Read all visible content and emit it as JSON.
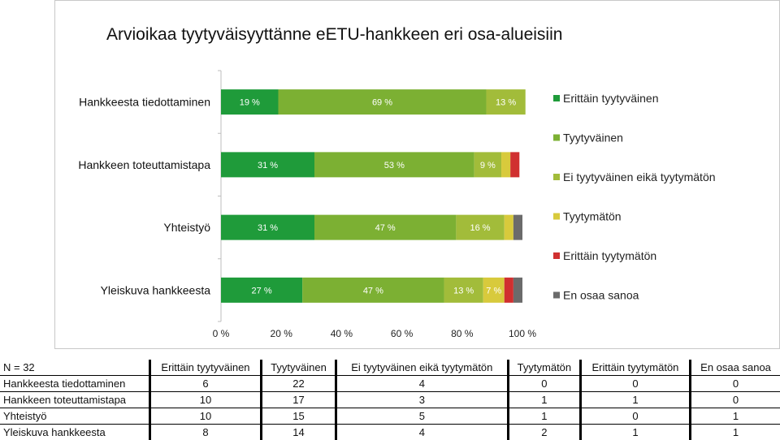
{
  "chart_data": {
    "type": "bar",
    "orientation": "horizontal",
    "stacked": true,
    "percent": true,
    "title": "Arvioikaa tyytyväisyyttänne eETU-hankkeen eri osa-alueisiin",
    "categories": [
      "Hankkeesta tiedottaminen",
      "Hankkeen toteuttamistapa",
      "Yhteistyö",
      "Yleiskuva hankkeesta"
    ],
    "series": [
      {
        "name": "Erittäin tyytyväinen",
        "color": "#1f9b3a",
        "values": [
          19,
          31,
          31,
          27
        ],
        "labels": [
          "19 %",
          "31 %",
          "31 %",
          "27 %"
        ]
      },
      {
        "name": "Tyytyväinen",
        "color": "#7cb033",
        "values": [
          69,
          53,
          47,
          47
        ],
        "labels": [
          "69 %",
          "53 %",
          "47 %",
          "47 %"
        ]
      },
      {
        "name": "Ei tyytyväinen eikä tyytymätön",
        "color": "#a2bc3a",
        "values": [
          13,
          9,
          16,
          13
        ],
        "labels": [
          "13 %",
          "9 %",
          "16 %",
          "13 %"
        ]
      },
      {
        "name": "Tyytymätön",
        "color": "#d8ca3c",
        "values": [
          0,
          3,
          3,
          7
        ],
        "labels": [
          "",
          "",
          "",
          "7 %"
        ]
      },
      {
        "name": "Erittäin tyytymätön",
        "color": "#d03030",
        "values": [
          0,
          3,
          0,
          3
        ],
        "labels": [
          "",
          "",
          "",
          ""
        ]
      },
      {
        "name": "En osaa sanoa",
        "color": "#6b6b6b",
        "values": [
          0,
          0,
          3,
          3
        ],
        "labels": [
          "",
          "",
          "",
          ""
        ]
      }
    ],
    "xlim": [
      0,
      100
    ],
    "xticks": [
      "0 %",
      "20 %",
      "40 %",
      "60 %",
      "80 %",
      "100 %"
    ],
    "legend_position": "right",
    "grid": false
  },
  "table": {
    "corner": "N = 32",
    "headers": [
      "Erittäin tyytyväinen",
      "Tyytyväinen",
      "Ei tyytyväinen eikä tyytymätön",
      "Tyytymätön",
      "Erittäin tyytymätön",
      "En osaa sanoa"
    ],
    "rows": [
      {
        "label": "Hankkeesta tiedottaminen",
        "values": [
          "6",
          "22",
          "4",
          "0",
          "0",
          "0"
        ]
      },
      {
        "label": "Hankkeen toteuttamistapa",
        "values": [
          "10",
          "17",
          "3",
          "1",
          "1",
          "0"
        ]
      },
      {
        "label": "Yhteistyö",
        "values": [
          "10",
          "15",
          "5",
          "1",
          "0",
          "1"
        ]
      },
      {
        "label": "Yleiskuva hankkeesta",
        "values": [
          "8",
          "14",
          "4",
          "2",
          "1",
          "1"
        ]
      }
    ]
  }
}
